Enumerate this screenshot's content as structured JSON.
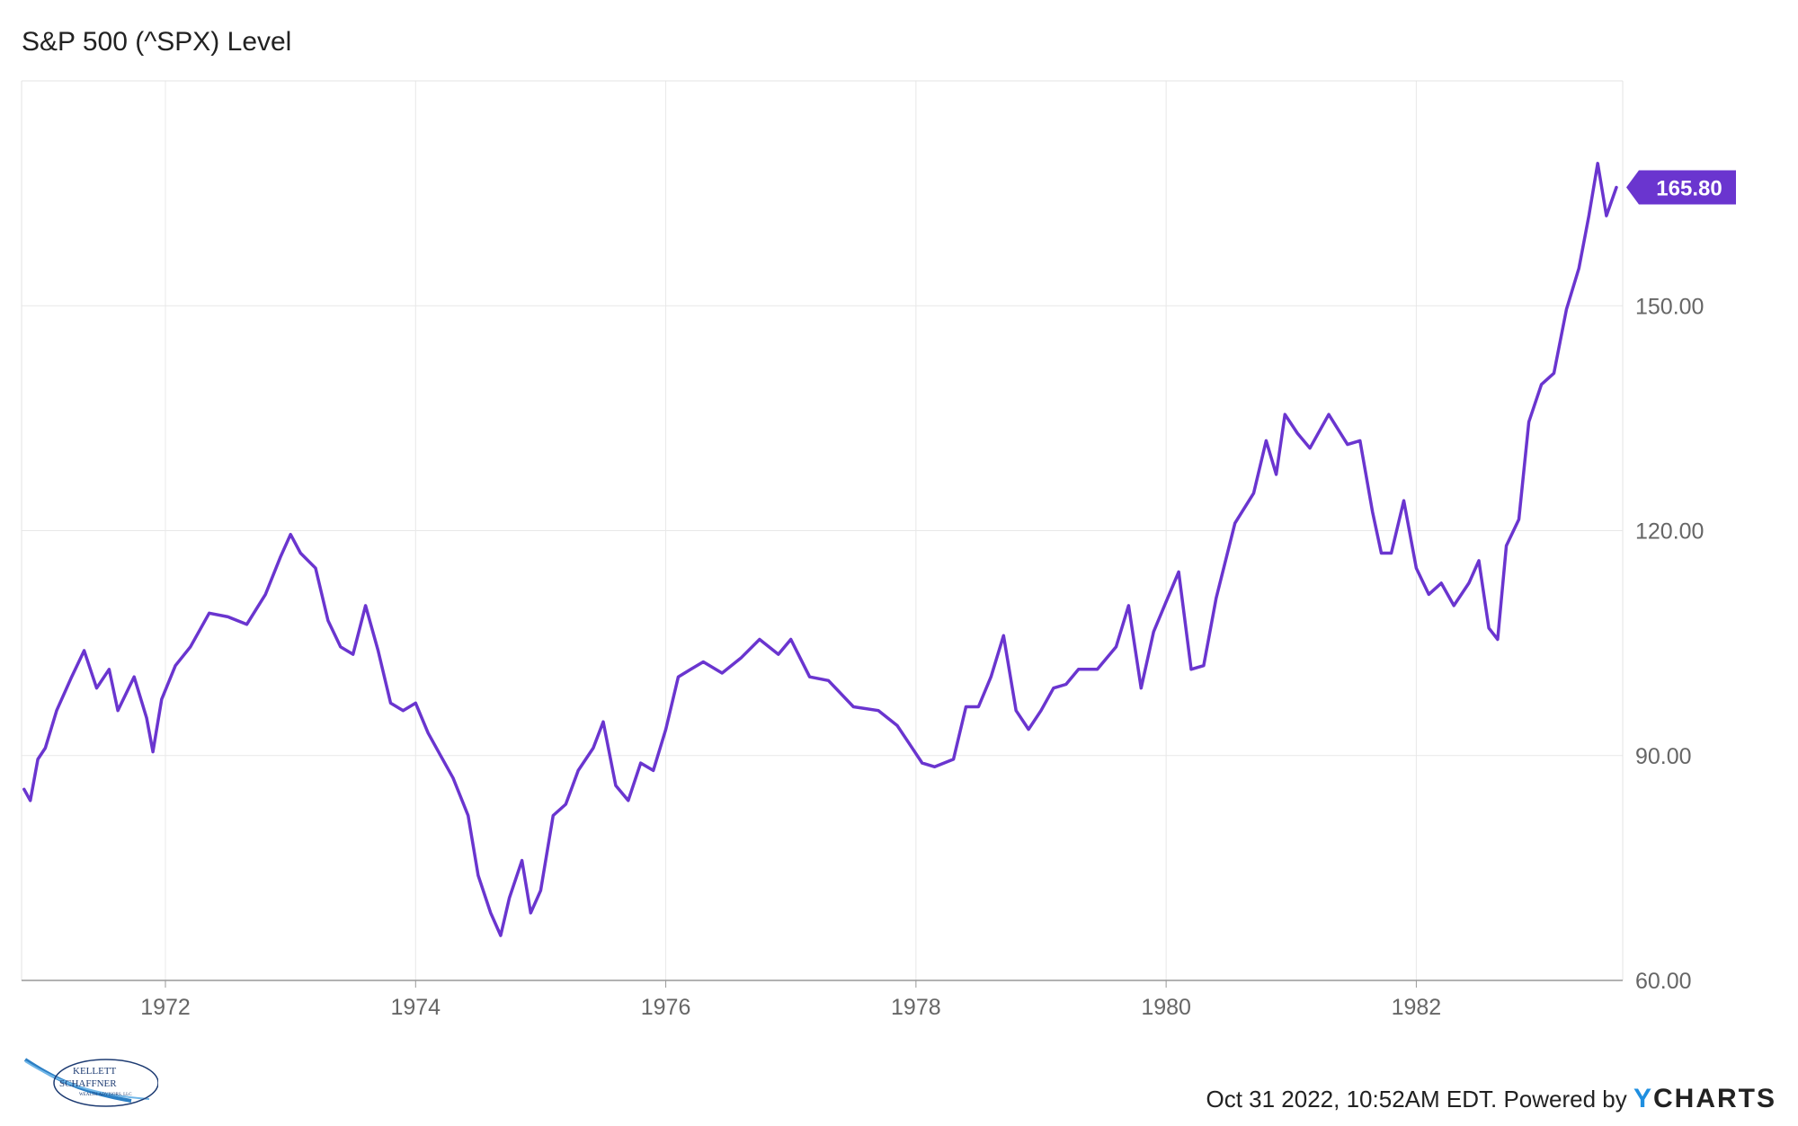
{
  "chart_data": {
    "type": "line",
    "title": "S&P 500 (^SPX) Level",
    "xlabel": "",
    "ylabel": "",
    "xlim": [
      1970.85,
      1983.65
    ],
    "ylim": [
      60,
      180
    ],
    "x_ticks": [
      "1972",
      "1974",
      "1976",
      "1978",
      "1980",
      "1982"
    ],
    "y_ticks": [
      "60.00",
      "90.00",
      "120.00",
      "150.00"
    ],
    "grid": true,
    "line_color": "#6a35cf",
    "last_value_label": "165.80",
    "series": [
      {
        "x": [
          1970.87,
          1970.92,
          1970.98,
          1971.04,
          1971.13,
          1971.25,
          1971.35,
          1971.45,
          1971.55,
          1971.62,
          1971.75,
          1971.85,
          1971.9,
          1971.97,
          1972.08,
          1972.2,
          1972.35,
          1972.5,
          1972.65,
          1972.8,
          1972.92,
          1973.0,
          1973.08,
          1973.2,
          1973.3,
          1973.4,
          1973.5,
          1973.6,
          1973.7,
          1973.8,
          1973.9,
          1974.0,
          1974.1,
          1974.2,
          1974.3,
          1974.42,
          1974.5,
          1974.6,
          1974.68,
          1974.75,
          1974.85,
          1974.92,
          1975.0,
          1975.1,
          1975.2,
          1975.3,
          1975.42,
          1975.5,
          1975.6,
          1975.7,
          1975.8,
          1975.9,
          1976.0,
          1976.1,
          1976.2,
          1976.3,
          1976.45,
          1976.6,
          1976.75,
          1976.9,
          1977.0,
          1977.15,
          1977.3,
          1977.5,
          1977.7,
          1977.85,
          1977.95,
          1978.05,
          1978.15,
          1978.3,
          1978.4,
          1978.5,
          1978.6,
          1978.7,
          1978.8,
          1978.9,
          1979.0,
          1979.1,
          1979.2,
          1979.3,
          1979.45,
          1979.6,
          1979.7,
          1979.8,
          1979.9,
          1980.0,
          1980.1,
          1980.2,
          1980.3,
          1980.4,
          1980.55,
          1980.7,
          1980.8,
          1980.88,
          1980.95,
          1981.05,
          1981.15,
          1981.3,
          1981.45,
          1981.55,
          1981.65,
          1981.72,
          1981.8,
          1981.9,
          1982.0,
          1982.1,
          1982.2,
          1982.3,
          1982.42,
          1982.5,
          1982.58,
          1982.65,
          1982.72,
          1982.82,
          1982.9,
          1983.0,
          1983.1,
          1983.2,
          1983.3,
          1983.38,
          1983.45,
          1983.52,
          1983.6
        ],
        "y": [
          85.5,
          84.0,
          89.5,
          91.0,
          96.0,
          100.5,
          104.0,
          99.0,
          101.5,
          96.0,
          100.5,
          95.0,
          90.5,
          97.5,
          102.0,
          104.5,
          109.0,
          108.5,
          107.5,
          111.5,
          116.5,
          119.5,
          117.0,
          115.0,
          108.0,
          104.5,
          103.5,
          110.0,
          104.0,
          97.0,
          96.0,
          97.0,
          93.0,
          90.0,
          87.0,
          82.0,
          74.0,
          69.0,
          66.0,
          71.0,
          76.0,
          69.0,
          72.0,
          82.0,
          83.5,
          88.0,
          91.0,
          94.5,
          86.0,
          84.0,
          89.0,
          88.0,
          93.5,
          100.5,
          101.5,
          102.5,
          101.0,
          103.0,
          105.5,
          103.5,
          105.5,
          100.5,
          100.0,
          96.5,
          96.0,
          94.0,
          91.5,
          89.0,
          88.5,
          89.5,
          96.5,
          96.5,
          100.5,
          106.0,
          96.0,
          93.5,
          96.0,
          99.0,
          99.5,
          101.5,
          101.5,
          104.5,
          110.0,
          99.0,
          106.5,
          110.5,
          114.5,
          101.5,
          102.0,
          111.0,
          121.0,
          125.0,
          132.0,
          127.5,
          135.5,
          133.0,
          131.0,
          135.5,
          131.5,
          132.0,
          122.5,
          117.0,
          117.0,
          124.0,
          115.0,
          111.5,
          113.0,
          110.0,
          113.0,
          116.0,
          107.0,
          105.5,
          118.0,
          121.5,
          134.5,
          139.5,
          141.0,
          149.5,
          155.0,
          162.0,
          169.0,
          162.0,
          165.8
        ]
      }
    ]
  },
  "footer": {
    "timestamp": "Oct 31 2022, 10:52AM EDT. Powered by",
    "brand_y": "Y",
    "brand_rest": "CHARTS"
  }
}
